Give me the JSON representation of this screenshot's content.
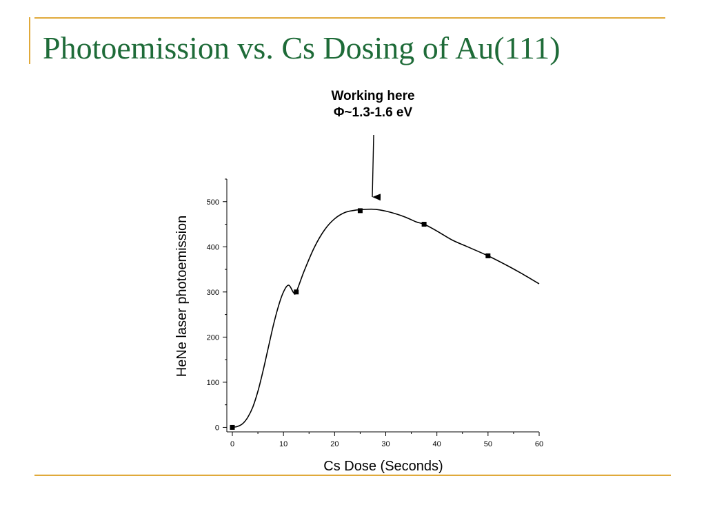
{
  "slide": {
    "title": "Photoemission vs. Cs Dosing of Au(111)",
    "colors": {
      "title": "#1e6b38",
      "rules": "#e0a93a"
    }
  },
  "chart_data": {
    "type": "line",
    "title": "",
    "xlabel": "Cs Dose (Seconds)",
    "ylabel": "HeNe laser photoemission",
    "xlim": [
      0,
      60
    ],
    "ylim": [
      -10,
      550
    ],
    "xticks": [
      0,
      10,
      20,
      30,
      40,
      50,
      60
    ],
    "yticks": [
      0,
      100,
      200,
      300,
      400,
      500
    ],
    "grid": false,
    "legend": "none",
    "series": [
      {
        "points": [
          [
            0,
            0
          ],
          [
            12.5,
            300
          ],
          [
            25,
            480
          ],
          [
            37.5,
            450
          ],
          [
            50,
            380
          ]
        ],
        "marker": "square",
        "color": "#000000"
      }
    ],
    "fit_curve": {
      "x": [
        0,
        1,
        2,
        3,
        4,
        5,
        6,
        7,
        8,
        9,
        10,
        11,
        12,
        12.5,
        14,
        16,
        18,
        20,
        22,
        24,
        25,
        26,
        28,
        30,
        32,
        34,
        36,
        37.5,
        40,
        43,
        46,
        50,
        54,
        57,
        60
      ],
      "y": [
        0,
        2,
        8,
        22,
        45,
        80,
        125,
        175,
        225,
        268,
        300,
        315,
        298,
        300,
        345,
        398,
        437,
        462,
        476,
        481,
        482,
        483,
        483,
        479,
        473,
        465,
        455,
        450,
        435,
        415,
        400,
        380,
        357,
        338,
        318
      ],
      "color": "#000000"
    },
    "annotations": [
      {
        "text_line1": "Working here",
        "text_line2": "Φ~1.3-1.6 eV",
        "points_to_x": 28
      }
    ]
  }
}
